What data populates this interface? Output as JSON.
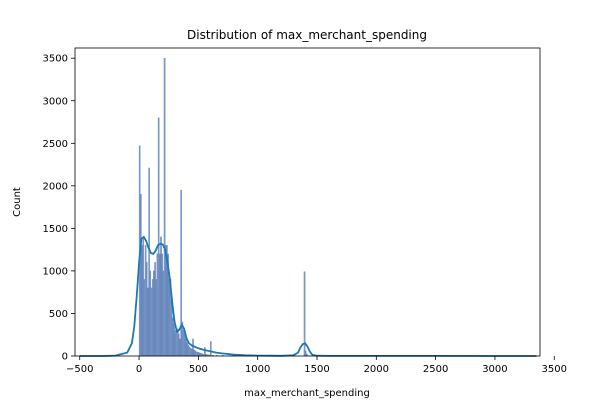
{
  "chart_data": {
    "type": "bar",
    "title": "Distribution of max_merchant_spending",
    "xlabel": "max_merchant_spending",
    "ylabel": "Count",
    "xlim": [
      -540,
      3380
    ],
    "ylim": [
      0,
      3620
    ],
    "xticks": [
      -500,
      0,
      500,
      1000,
      1500,
      2000,
      2500,
      3000,
      3500
    ],
    "yticks": [
      0,
      500,
      1000,
      1500,
      2000,
      2500,
      3000,
      3500
    ],
    "grid": false,
    "legend": "none",
    "colors": {
      "bars": "#4c72b0",
      "kde": "#1f77b4",
      "axes": "#000000"
    },
    "series": [
      {
        "kind": "histogram",
        "bin_width": 10,
        "bins": [
          [
            0,
            2470
          ],
          [
            10,
            1900
          ],
          [
            20,
            1300
          ],
          [
            30,
            1400
          ],
          [
            40,
            900
          ],
          [
            50,
            1300
          ],
          [
            60,
            1100
          ],
          [
            70,
            800
          ],
          [
            80,
            2210
          ],
          [
            90,
            1000
          ],
          [
            100,
            800
          ],
          [
            110,
            900
          ],
          [
            120,
            1000
          ],
          [
            130,
            1100
          ],
          [
            140,
            900
          ],
          [
            150,
            1200
          ],
          [
            160,
            2800
          ],
          [
            170,
            1200
          ],
          [
            180,
            1400
          ],
          [
            190,
            1200
          ],
          [
            200,
            1000
          ],
          [
            210,
            3500
          ],
          [
            220,
            1300
          ],
          [
            230,
            1300
          ],
          [
            240,
            1200
          ],
          [
            250,
            900
          ],
          [
            260,
            900
          ],
          [
            270,
            700
          ],
          [
            280,
            450
          ],
          [
            290,
            380
          ],
          [
            300,
            300
          ],
          [
            310,
            260
          ],
          [
            320,
            320
          ],
          [
            330,
            260
          ],
          [
            340,
            200
          ],
          [
            350,
            1950
          ],
          [
            360,
            400
          ],
          [
            370,
            300
          ],
          [
            380,
            250
          ],
          [
            390,
            200
          ],
          [
            400,
            160
          ],
          [
            410,
            130
          ],
          [
            420,
            110
          ],
          [
            430,
            90
          ],
          [
            440,
            80
          ],
          [
            450,
            200
          ],
          [
            460,
            70
          ],
          [
            470,
            60
          ],
          [
            480,
            50
          ],
          [
            490,
            45
          ],
          [
            500,
            40
          ],
          [
            510,
            35
          ],
          [
            520,
            30
          ],
          [
            530,
            25
          ],
          [
            540,
            20
          ],
          [
            550,
            100
          ],
          [
            560,
            20
          ],
          [
            570,
            15
          ],
          [
            580,
            15
          ],
          [
            590,
            10
          ],
          [
            600,
            170
          ],
          [
            620,
            10
          ],
          [
            650,
            8
          ],
          [
            700,
            8
          ],
          [
            750,
            5
          ],
          [
            800,
            20
          ],
          [
            850,
            5
          ],
          [
            900,
            5
          ],
          [
            950,
            3
          ],
          [
            1000,
            3
          ],
          [
            1100,
            3
          ],
          [
            1200,
            3
          ],
          [
            1300,
            5
          ],
          [
            1390,
            990
          ],
          [
            1400,
            60
          ],
          [
            1410,
            20
          ],
          [
            1500,
            2
          ],
          [
            1700,
            2
          ],
          [
            2000,
            1
          ],
          [
            2500,
            1
          ],
          [
            3000,
            1
          ]
        ]
      },
      {
        "kind": "kde",
        "x": [
          -500,
          -300,
          -200,
          -100,
          -60,
          -40,
          -20,
          0,
          20,
          40,
          60,
          80,
          100,
          120,
          140,
          160,
          180,
          200,
          220,
          240,
          260,
          280,
          300,
          320,
          340,
          360,
          380,
          400,
          420,
          450,
          500,
          550,
          600,
          650,
          700,
          800,
          900,
          1000,
          1100,
          1200,
          1300,
          1340,
          1360,
          1380,
          1400,
          1420,
          1440,
          1460,
          1500,
          1600,
          2000,
          2500,
          3000,
          3350
        ],
        "y": [
          0,
          0,
          5,
          40,
          150,
          350,
          700,
          1100,
          1380,
          1400,
          1350,
          1270,
          1210,
          1200,
          1240,
          1300,
          1320,
          1310,
          1250,
          1100,
          900,
          620,
          400,
          280,
          310,
          370,
          320,
          210,
          150,
          120,
          90,
          70,
          55,
          40,
          30,
          15,
          8,
          5,
          3,
          2,
          8,
          40,
          100,
          140,
          150,
          110,
          50,
          15,
          3,
          1,
          1,
          1,
          0,
          0
        ]
      }
    ]
  }
}
